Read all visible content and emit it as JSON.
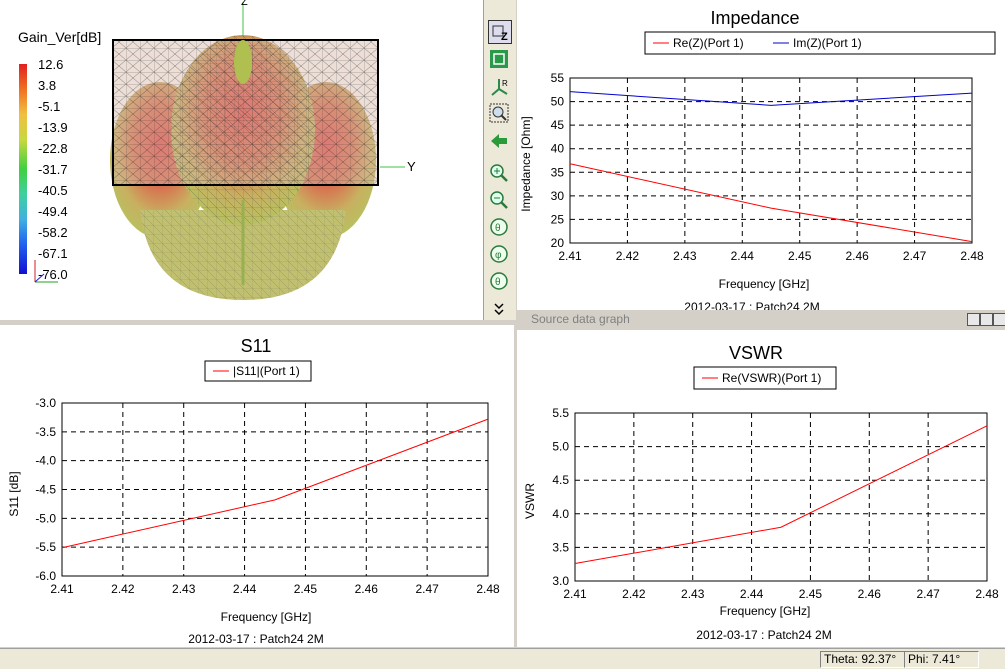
{
  "gain_view": {
    "title": "Gain_Ver[dB]",
    "scale_labels": [
      "12.6",
      "3.8",
      "-5.1",
      "-13.9",
      "-22.8",
      "-31.7",
      "-40.5",
      "-49.4",
      "-58.2",
      "-67.1",
      "-76.0"
    ],
    "axis_z": "Z",
    "axis_y": "Y"
  },
  "toolbar": {
    "items": [
      "view-z-icon",
      "fit-view-icon",
      "view-xyz-icon",
      "zoom-window-icon",
      "back-arrow-icon",
      "zoom-in-icon",
      "zoom-out-icon",
      "rotate-x-icon",
      "rotate-y-icon",
      "rotate-z-icon",
      "more-chevron-icon"
    ]
  },
  "source_data_graph": {
    "label": "Source data graph"
  },
  "colors": {
    "re": "#ff0000",
    "im": "#0000cc",
    "grid": "#000000"
  },
  "chart_data": [
    {
      "type": "line",
      "title": "Impedance",
      "xlabel": "Frequency [GHz]",
      "ylabel": "Impedance [Ohm]",
      "footer": "2012-03-17 : Patch24 2M",
      "x": [
        2.41,
        2.445,
        2.48
      ],
      "xlim": [
        2.41,
        2.48
      ],
      "ylim": [
        20,
        55
      ],
      "xticks": [
        "2.41",
        "2.42",
        "2.43",
        "2.44",
        "2.45",
        "2.46",
        "2.47",
        "2.48"
      ],
      "yticks": [
        "20",
        "25",
        "30",
        "35",
        "40",
        "45",
        "50",
        "55"
      ],
      "series": [
        {
          "name": "Re(Z)(Port 1)",
          "x": [
            2.41,
            2.445,
            2.48
          ],
          "values": [
            36.8,
            27.4,
            20.3
          ]
        },
        {
          "name": "Im(Z)(Port 1)",
          "x": [
            2.41,
            2.445,
            2.48
          ],
          "values": [
            52.1,
            49.2,
            51.8
          ]
        }
      ]
    },
    {
      "type": "line",
      "title": "S11",
      "xlabel": "Frequency [GHz]",
      "ylabel": "S11 [dB]",
      "footer": "2012-03-17 : Patch24 2M",
      "xlim": [
        2.41,
        2.48
      ],
      "ylim": [
        -6.0,
        -3.0
      ],
      "xticks": [
        "2.41",
        "2.42",
        "2.43",
        "2.44",
        "2.45",
        "2.46",
        "2.47",
        "2.48"
      ],
      "yticks": [
        "-6.0",
        "-5.5",
        "-5.0",
        "-4.5",
        "-4.0",
        "-3.5",
        "-3.0"
      ],
      "series": [
        {
          "name": "|S11|(Port 1)",
          "x": [
            2.41,
            2.445,
            2.48
          ],
          "values": [
            -5.51,
            -4.68,
            -3.28
          ]
        }
      ]
    },
    {
      "type": "line",
      "title": "VSWR",
      "xlabel": "Frequency [GHz]",
      "ylabel": "VSWR",
      "footer": "2012-03-17 : Patch24 2M",
      "xlim": [
        2.41,
        2.48
      ],
      "ylim": [
        3.0,
        5.5
      ],
      "xticks": [
        "2.41",
        "2.42",
        "2.43",
        "2.44",
        "2.45",
        "2.46",
        "2.47",
        "2.48"
      ],
      "yticks": [
        "3.0",
        "3.5",
        "4.0",
        "4.5",
        "5.0",
        "5.5"
      ],
      "series": [
        {
          "name": "Re(VSWR)(Port 1)",
          "x": [
            2.41,
            2.445,
            2.48
          ],
          "values": [
            3.26,
            3.8,
            5.31
          ]
        }
      ]
    }
  ],
  "status_bar": {
    "theta": "Theta: 92.37°",
    "phi": "Phi: 7.41°"
  }
}
